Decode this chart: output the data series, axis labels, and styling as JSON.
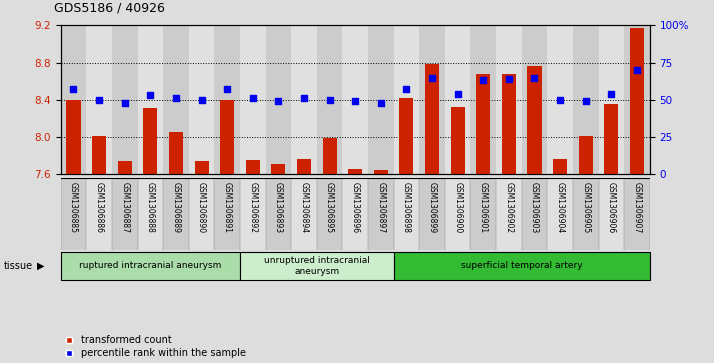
{
  "title": "GDS5186 / 40926",
  "samples": [
    "GSM1306885",
    "GSM1306886",
    "GSM1306887",
    "GSM1306888",
    "GSM1306889",
    "GSM1306890",
    "GSM1306891",
    "GSM1306892",
    "GSM1306893",
    "GSM1306894",
    "GSM1306895",
    "GSM1306896",
    "GSM1306897",
    "GSM1306898",
    "GSM1306899",
    "GSM1306900",
    "GSM1306901",
    "GSM1306902",
    "GSM1306903",
    "GSM1306904",
    "GSM1306905",
    "GSM1306906",
    "GSM1306907"
  ],
  "transformed_count": [
    8.4,
    8.01,
    7.74,
    8.31,
    8.05,
    7.74,
    8.4,
    7.75,
    7.71,
    7.76,
    7.99,
    7.66,
    7.65,
    8.42,
    8.79,
    8.32,
    8.68,
    8.68,
    8.76,
    7.76,
    8.01,
    8.35,
    9.17
  ],
  "percentile_rank": [
    57,
    50,
    48,
    53,
    51,
    50,
    57,
    51,
    49,
    51,
    50,
    49,
    48,
    57,
    65,
    54,
    63,
    64,
    65,
    50,
    49,
    54,
    70
  ],
  "groups": [
    {
      "label": "ruptured intracranial aneurysm",
      "start": 0,
      "end": 7,
      "color": "#aaddaa"
    },
    {
      "label": "unruptured intracranial\naneurysm",
      "start": 7,
      "end": 13,
      "color": "#cceecc"
    },
    {
      "label": "superficial temporal artery",
      "start": 13,
      "end": 23,
      "color": "#33bb33"
    }
  ],
  "ylim": [
    7.6,
    9.2
  ],
  "yticks": [
    7.6,
    8.0,
    8.4,
    8.8,
    9.2
  ],
  "right_yticks": [
    0,
    25,
    50,
    75,
    100
  ],
  "bar_color": "#cc2200",
  "dot_color": "#0000ee",
  "background_color": "#dddddd",
  "col_colors": [
    "#cccccc",
    "#e0e0e0"
  ],
  "plot_bg": "#ffffff",
  "title_fontsize": 9
}
